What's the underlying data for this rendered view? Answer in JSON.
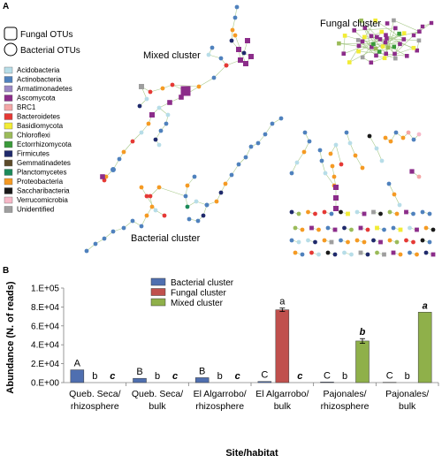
{
  "figure": {
    "panel_a_label": "A",
    "panel_b_label": "B"
  },
  "network": {
    "node_shape_legend": [
      {
        "shape": "square",
        "label": "Fungal OTUs"
      },
      {
        "shape": "circle",
        "label": "Bacterial OTUs"
      }
    ],
    "taxa_legend": [
      {
        "label": "Acidobacteria",
        "color": "#b7dde8"
      },
      {
        "label": "Actinobacteria",
        "color": "#4f81bd"
      },
      {
        "label": "Armatimonadetes",
        "color": "#9a86c4"
      },
      {
        "label": "Ascomycota",
        "color": "#8c2d8a"
      },
      {
        "label": "BRC1",
        "color": "#f4a6a6"
      },
      {
        "label": "Bacteroidetes",
        "color": "#e53935"
      },
      {
        "label": "Basidiomycota",
        "color": "#f2ec35"
      },
      {
        "label": "Chloroflexi",
        "color": "#9bbb59"
      },
      {
        "label": "Ectorrhizomycota",
        "color": "#3a9a3a"
      },
      {
        "label": "Firmicutes",
        "color": "#1f2a6b"
      },
      {
        "label": "Gemmatinadetes",
        "color": "#5c4a2a"
      },
      {
        "label": "Planctomycetes",
        "color": "#1b8a5a"
      },
      {
        "label": "Proteobacteria",
        "color": "#f59a23"
      },
      {
        "label": "Saccharibacteria",
        "color": "#1a1a1a"
      },
      {
        "label": "Verrucomicrobia",
        "color": "#f7b8c8"
      },
      {
        "label": "Unidentified",
        "color": "#9e9e9e"
      }
    ],
    "cluster_labels": {
      "mixed": "Mixed cluster",
      "fungal": "Fungal cluster",
      "bacterial": "Bacterial cluster"
    }
  },
  "chart_data": {
    "type": "bar",
    "categories": [
      [
        "Queb. Seca/",
        "rhizosphere"
      ],
      [
        "Queb. Seca/",
        "bulk"
      ],
      [
        "El Algarrobo/",
        "rhizosphere"
      ],
      [
        "El Algarrobo/",
        "bulk"
      ],
      [
        "Pajonales/",
        "rhizosphere"
      ],
      [
        "Pajonales/",
        "bulk"
      ]
    ],
    "series": [
      {
        "name": "Bacterial cluster",
        "color": "#4f6fb0",
        "values": [
          13500,
          4500,
          5200,
          1200,
          600,
          300
        ],
        "error": [
          0,
          0,
          0,
          0,
          0,
          0
        ],
        "labels": [
          "A",
          "B",
          "B",
          "C",
          "C",
          "C"
        ],
        "label_style": "normal"
      },
      {
        "name": "Fungal cluster",
        "color": "#c0504d",
        "values": [
          0,
          0,
          0,
          77000,
          0,
          0
        ],
        "error": [
          0,
          0,
          0,
          1800,
          0,
          0
        ],
        "labels": [
          "b",
          "b",
          "b",
          "a",
          "b",
          "b"
        ],
        "label_style": "normal"
      },
      {
        "name": "Mixed cluster",
        "color": "#8fb04a",
        "values": [
          0,
          0,
          0,
          0,
          44000,
          74500
        ],
        "error": [
          0,
          0,
          0,
          0,
          2500,
          0
        ],
        "labels": [
          "c",
          "c",
          "c",
          "c",
          "b",
          "a"
        ],
        "label_style": "bold-italic"
      }
    ],
    "ylabel": "Abundance (N. of reads)",
    "xlabel": "Site/habitat",
    "ylim": [
      0,
      100000
    ],
    "yticks": [
      0,
      20000,
      40000,
      60000,
      80000,
      100000
    ],
    "ytick_labels": [
      "0.E+00",
      "2.E+04",
      "4.E+04",
      "6.E+04",
      "8.E+04",
      "1.E+05"
    ],
    "legend_position": "top-left",
    "grid": false
  }
}
